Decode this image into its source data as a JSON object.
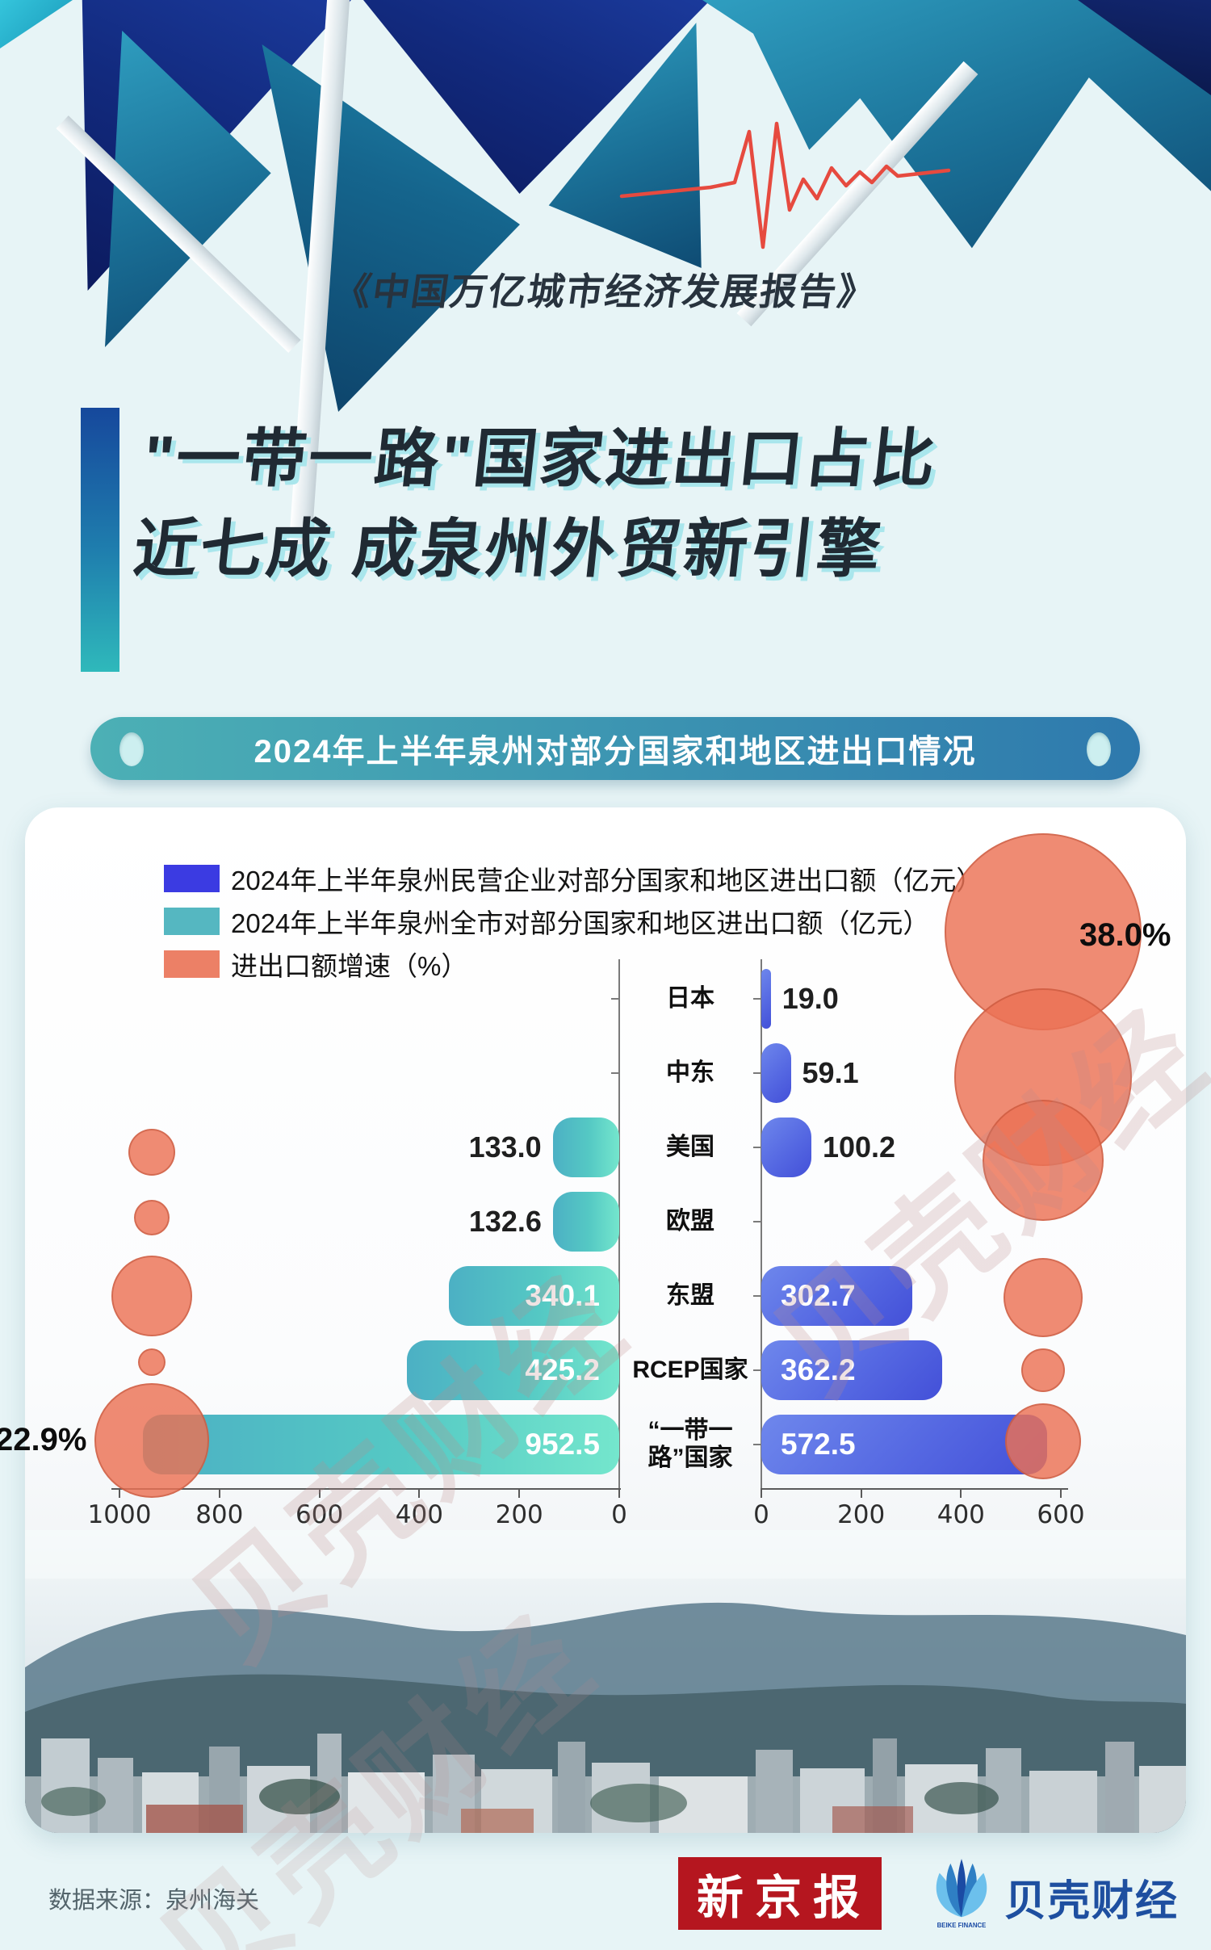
{
  "header": {
    "report_title": "《中国万亿城市经济发展报告》",
    "headline_line1": "\"一带一路\"国家进出口占比",
    "headline_line2": "近七成 成泉州外贸新引擎",
    "section_banner": "2024年上半年泉州对部分国家和地区进出口情况"
  },
  "legend": {
    "items": [
      {
        "label": "2024年上半年泉州民营企业对部分国家和地区进出口额（亿元）",
        "color": "#3b3be2"
      },
      {
        "label": "2024年上半年泉州全市对部分国家和地区进出口额（亿元）",
        "color": "#55b7c1"
      },
      {
        "label": "进出口额增速（%）",
        "color": "#ec8066"
      }
    ]
  },
  "chart_data": {
    "type": "bar",
    "orientation": "bilateral-horizontal-with-bubbles",
    "categories": [
      "日本",
      "中东",
      "美国",
      "欧盟",
      "东盟",
      "RCEP国家",
      "“一带一路”国家"
    ],
    "series": [
      {
        "name": "2024年上半年泉州全市对部分国家和地区进出口额（亿元）",
        "side": "left",
        "values": [
          null,
          null,
          133.0,
          132.6,
          340.1,
          425.2,
          952.5
        ],
        "axis_range": [
          0,
          1000
        ]
      },
      {
        "name": "2024年上半年泉州民营企业对部分国家和地区进出口额（亿元）",
        "side": "right",
        "values": [
          19.0,
          59.1,
          100.2,
          null,
          302.7,
          362.2,
          572.5
        ],
        "axis_range": [
          0,
          600
        ]
      }
    ],
    "growth_series_name": "进出口额增速（%）",
    "left_axis_ticks": [
      1000,
      800,
      600,
      400,
      200,
      0
    ],
    "right_axis_ticks": [
      0,
      200,
      400,
      600
    ],
    "bubbles": [
      {
        "category": "美国",
        "side": "left",
        "r": 27,
        "dy": 4
      },
      {
        "category": "欧盟",
        "side": "left",
        "r": 20,
        "dy": -7
      },
      {
        "category": "东盟",
        "side": "left",
        "r": 48,
        "dy": -2
      },
      {
        "category": "RCEP国家",
        "side": "left",
        "r": 15,
        "dy": -12
      },
      {
        "category": "“一带一路”国家",
        "side": "left",
        "r": 69,
        "dy": -7,
        "label": "22.9%"
      },
      {
        "category": "日本",
        "side": "right",
        "r": 120,
        "dy": -85,
        "label": "38.0%"
      },
      {
        "category": "中东",
        "side": "right",
        "r": 108,
        "dy": 3
      },
      {
        "category": "美国",
        "side": "right",
        "r": 73,
        "dy": 14
      },
      {
        "category": "东盟",
        "side": "right",
        "r": 47,
        "dy": 0
      },
      {
        "category": "RCEP国家",
        "side": "right",
        "r": 25,
        "dy": -2
      },
      {
        "category": "“一带一路”国家",
        "side": "right",
        "r": 45,
        "dy": -6
      }
    ]
  },
  "watermark": "贝壳财经",
  "footer": {
    "source": "数据来源：泉州海关",
    "logo_xinjingbao": "新京报",
    "logo_beike": "贝壳财经",
    "logo_beike_sub": "BEIKE FINANCE"
  }
}
